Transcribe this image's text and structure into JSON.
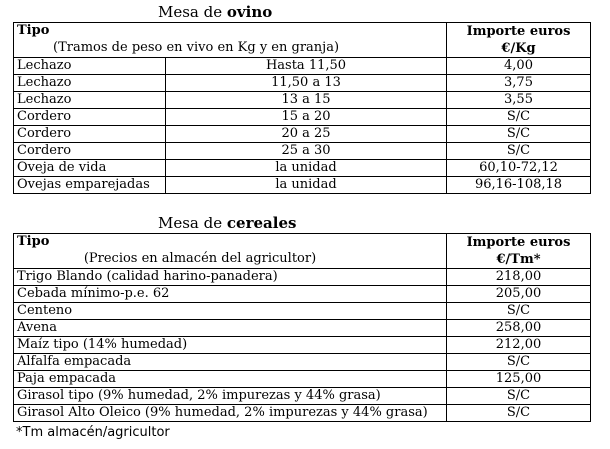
{
  "ovino": {
    "title_prefix": "Mesa de ",
    "title_bold": "ovino",
    "header": {
      "tipo": "Tipo",
      "subtitle": "(Tramos de peso en vivo en Kg y en granja)",
      "importe_line1": "Importe euros",
      "importe_line2": "€/Kg"
    },
    "rows": [
      {
        "tipo": "Lechazo",
        "tramo": "Hasta 11,50",
        "importe": "4,00"
      },
      {
        "tipo": "Lechazo",
        "tramo": "11,50 a 13",
        "importe": "3,75"
      },
      {
        "tipo": "Lechazo",
        "tramo": "13 a 15",
        "importe": "3,55"
      },
      {
        "tipo": "Cordero",
        "tramo": "15 a 20",
        "importe": "S/C"
      },
      {
        "tipo": "Cordero",
        "tramo": "20 a 25",
        "importe": "S/C"
      },
      {
        "tipo": "Cordero",
        "tramo": "25 a 30",
        "importe": "S/C"
      },
      {
        "tipo": "Oveja de vida",
        "tramo": "la unidad",
        "importe": "60,10-72,12"
      },
      {
        "tipo": "Ovejas emparejadas",
        "tramo": "la unidad",
        "importe": "96,16-108,18"
      }
    ]
  },
  "cereales": {
    "title_prefix": "Mesa de ",
    "title_bold": "cereales",
    "header": {
      "tipo": "Tipo",
      "subtitle": "(Precios en almacén del agricultor)",
      "importe_line1": "Importe euros",
      "importe_line2": "€/Tm*"
    },
    "rows": [
      {
        "tipo": "Trigo Blando (calidad harino-panadera)",
        "importe": "218,00"
      },
      {
        "tipo": "Cebada mínimo-p.e. 62",
        "importe": "205,00"
      },
      {
        "tipo": "Centeno",
        "importe": "S/C"
      },
      {
        "tipo": "Avena",
        "importe": "258,00"
      },
      {
        "tipo": "Maíz tipo (14% humedad)",
        "importe": "212,00"
      },
      {
        "tipo": "Alfalfa empacada",
        "importe": "S/C"
      },
      {
        "tipo": "Paja empacada",
        "importe": "125,00"
      },
      {
        "tipo": "Girasol tipo (9% humedad, 2% impurezas y 44% grasa)",
        "importe": "S/C"
      },
      {
        "tipo": "Girasol Alto Oleico (9% humedad, 2% impurezas y 44% grasa)",
        "importe": "S/C"
      }
    ],
    "note": "*Tm almacén/agricultor"
  }
}
